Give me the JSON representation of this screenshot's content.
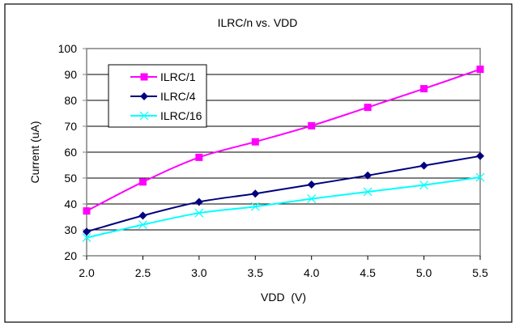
{
  "chart_data": {
    "type": "line",
    "title": "ILRC/n vs. VDD",
    "xlabel": "VDD  (V)",
    "ylabel": "Current (uA)",
    "x": [
      2.0,
      2.5,
      3.0,
      3.5,
      4.0,
      4.5,
      5.0,
      5.5
    ],
    "x_tick_labels": [
      "2.0",
      "2.5",
      "3.0",
      "3.5",
      "4.0",
      "4.5",
      "5.0",
      "5.5"
    ],
    "xlim": [
      2.0,
      5.5
    ],
    "ylim": [
      20,
      100
    ],
    "y_ticks": [
      20,
      30,
      40,
      50,
      60,
      70,
      80,
      90,
      100
    ],
    "y_tick_labels": [
      "20",
      "30",
      "40",
      "50",
      "60",
      "70",
      "80",
      "90",
      "100"
    ],
    "grid": "horizontal",
    "legend_position": "top-left",
    "series": [
      {
        "name": "ILRC/1",
        "color": "#ff00ff",
        "marker": "square",
        "values": [
          37.3,
          48.5,
          58.0,
          64.0,
          70.2,
          77.3,
          84.5,
          92.0
        ]
      },
      {
        "name": "ILRC/4",
        "color": "#000080",
        "marker": "diamond",
        "values": [
          29.3,
          35.5,
          40.8,
          44.0,
          47.5,
          51.0,
          54.8,
          58.5
        ]
      },
      {
        "name": "ILRC/16",
        "color": "#00ffff",
        "marker": "x",
        "values": [
          27.0,
          32.0,
          36.5,
          39.0,
          42.0,
          44.7,
          47.3,
          50.3
        ]
      }
    ]
  }
}
